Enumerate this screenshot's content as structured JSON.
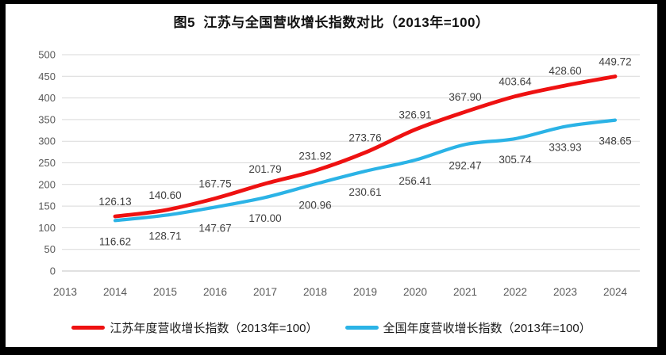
{
  "title": "图5  江苏与全国营收增长指数对比（2013年=100）",
  "chart_data": {
    "type": "line",
    "title": "图5  江苏与全国营收增长指数对比（2013年=100）",
    "categories": [
      "2013",
      "2014",
      "2015",
      "2016",
      "2017",
      "2018",
      "2019",
      "2020",
      "2021",
      "2022",
      "2023",
      "2024"
    ],
    "series": [
      {
        "name": "江苏年度营收增长指数（2013年=100）",
        "color": "#ee1111",
        "label_position": "above",
        "values": [
          null,
          126.13,
          140.6,
          167.75,
          201.79,
          231.92,
          273.76,
          326.91,
          367.9,
          403.64,
          428.6,
          449.72
        ]
      },
      {
        "name": "全国年度营收增长指数（2013年=100）",
        "color": "#2bb3e6",
        "label_position": "below",
        "values": [
          null,
          116.62,
          128.71,
          147.67,
          170.0,
          200.96,
          230.61,
          256.41,
          292.47,
          305.74,
          333.93,
          348.65
        ]
      }
    ],
    "xlabel": "",
    "ylabel": "",
    "ylim": [
      0,
      500
    ],
    "ytick_step": 50,
    "grid": true,
    "legend_position": "bottom",
    "label_decimals": 2,
    "colors": {
      "gridline": "#d9d9d9",
      "axis_line": "#c0c0c0",
      "tick_label": "#595959",
      "data_label": "#3f3f3f"
    }
  }
}
